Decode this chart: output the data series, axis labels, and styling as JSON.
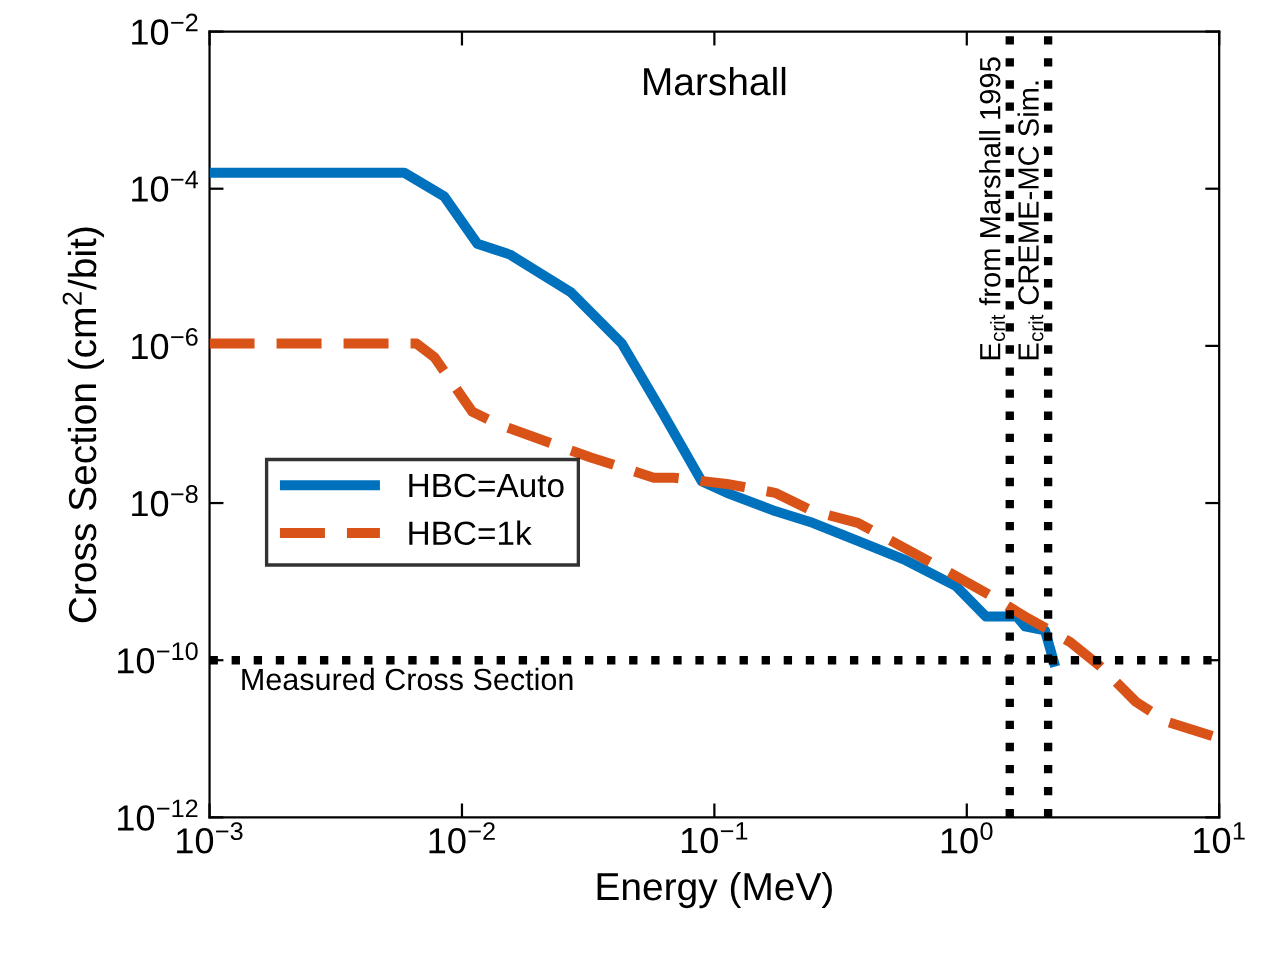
{
  "chart_data": {
    "type": "line",
    "xlabel": "Energy (MeV)",
    "ylabel": "Cross Section (cm$^{2}$/bit)",
    "log": "xy",
    "grid": false,
    "legend": "center left",
    "marker": "none",
    "xlim": [
      0.001,
      10
    ],
    "ylim": [
      1e-12,
      0.01
    ],
    "xticks": [
      {
        "value": 0.001,
        "label": "10$^{−3}$"
      },
      {
        "value": 0.01,
        "label": "10$^{−2}$"
      },
      {
        "value": 0.1,
        "label": "10$^{−1}$"
      },
      {
        "value": 1,
        "label": "10$^{0}$"
      },
      {
        "value": 10,
        "label": "10$^{1}$"
      }
    ],
    "yticks": [
      {
        "value": 1e-12,
        "label": "10$^{−12}$"
      },
      {
        "value": 1e-10,
        "label": "10$^{−10}$"
      },
      {
        "value": 1e-08,
        "label": "10$^{−8}$"
      },
      {
        "value": 1e-06,
        "label": "10$^{−6}$"
      },
      {
        "value": 0.0001,
        "label": "10$^{−4}$"
      },
      {
        "value": 0.01,
        "label": "10$^{−2}$"
      }
    ],
    "series": [
      {
        "name": "HBC=Auto",
        "color": "#0072bd",
        "line_style": "solid",
        "x": [
          0.001,
          0.003,
          0.0059,
          0.0085,
          0.0115,
          0.0155,
          0.027,
          0.043,
          0.062,
          0.089,
          0.112,
          0.174,
          0.245,
          0.37,
          0.575,
          0.91,
          1.19,
          1.58,
          1.7,
          2.04,
          2.24
        ],
        "values": [
          0.00016,
          0.00016,
          0.00016,
          8e-05,
          2e-05,
          1.45e-05,
          4.8e-06,
          1.07e-06,
          1.45e-07,
          1.9e-08,
          1.35e-08,
          7.9e-09,
          5.6e-09,
          3.3e-09,
          1.86e-09,
          8.7e-10,
          3.6e-10,
          3.6e-10,
          2.7e-10,
          2.4e-10,
          8.3e-11
        ]
      },
      {
        "name": "HBC=1k",
        "color": "#d95319",
        "line_style": "dashed",
        "x": [
          0.001,
          0.003,
          0.0066,
          0.0078,
          0.011,
          0.0138,
          0.0224,
          0.0324,
          0.0575,
          0.069,
          0.112,
          0.174,
          0.245,
          0.37,
          0.776,
          1.26,
          1.7,
          2.57,
          3.39,
          4.68,
          6.17,
          9.5
        ],
        "values": [
          1.07e-06,
          1.07e-06,
          1.07e-06,
          7.1e-07,
          1.45e-07,
          1.02e-07,
          5.8e-08,
          3.8e-08,
          2.1e-08,
          2.1e-08,
          1.75e-08,
          1.35e-08,
          7.9e-09,
          5.6e-09,
          1.55e-09,
          6.5e-10,
          3.6e-10,
          1.7e-10,
          8.3e-11,
          2.95e-11,
          1.66e-11,
          1.07e-11
        ]
      }
    ],
    "ref_lines": [
      {
        "axis": "y",
        "value": 1e-10,
        "label": "Measured Cross Section",
        "color": "#000000",
        "line_style": "dotted"
      },
      {
        "axis": "x",
        "value": 1.48,
        "label": "E$_{crit}$ from Marshall 1995",
        "color": "#000000",
        "line_style": "dotted"
      },
      {
        "axis": "x",
        "value": 2.1,
        "label": "E$_{crit}$ CREME-MC Sim.",
        "color": "#000000",
        "line_style": "dotted"
      }
    ],
    "annotations": [
      "Marshall"
    ]
  }
}
